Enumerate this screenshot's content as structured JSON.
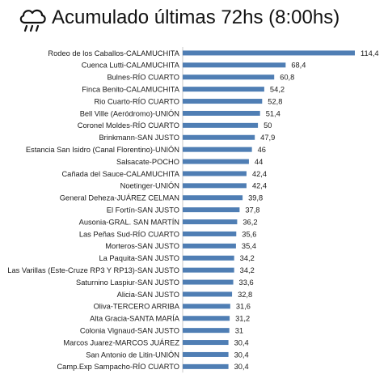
{
  "title": "Acumulado últimas 72hs (8:00hs)",
  "icons": {
    "header": "rain-cloud-icon"
  },
  "colors": {
    "bar": "#4f7eb4",
    "title": "#111111"
  },
  "chart_data": {
    "type": "bar",
    "orientation": "horizontal",
    "title": "Acumulado últimas 72hs (8:00hs)",
    "xlabel": "",
    "ylabel": "",
    "grid": false,
    "categories": [
      "Rodeo de los Caballos-CALAMUCHITA",
      "Cuenca Lutti-CALAMUCHITA",
      "Bulnes-RÍO CUARTO",
      "Finca Benito-CALAMUCHITA",
      "Rio Cuarto-RÍO CUARTO",
      "Bell Ville (Aeródromo)-UNIÓN",
      "Coronel Moldes-RÍO CUARTO",
      "Brinkmann-SAN JUSTO",
      "Estancia San Isidro (Canal Florentino)-UNIÓN",
      "Salsacate-POCHO",
      "Cañada del Sauce-CALAMUCHITA",
      "Noetinger-UNIÓN",
      "General Deheza-JUÁREZ CELMAN",
      "El Fortín-SAN JUSTO",
      "Ausonia-GRAL. SAN MARTÍN",
      "Las Peñas Sud-RÍO CUARTO",
      "Morteros-SAN JUSTO",
      "La Paquita-SAN JUSTO",
      "Las Varillas (Este-Cruze RP3 Y RP13)-SAN JUSTO",
      "Saturnino Laspiur-SAN JUSTO",
      "Alicia-SAN JUSTO",
      "Oliva-TERCERO ARRIBA",
      "Alta Gracia-SANTA MARÍA",
      "Colonia Vignaud-SAN JUSTO",
      "Marcos Juarez-MARCOS JUÁREZ",
      "San Antonio de Litin-UNIÓN",
      "Camp.Exp Sampacho-RÍO CUARTO"
    ],
    "values": [
      114.4,
      68.4,
      60.8,
      54.2,
      52.8,
      51.4,
      50,
      47.9,
      46,
      44,
      42.4,
      42.4,
      39.8,
      37.8,
      36.2,
      35.6,
      35.4,
      34.2,
      34.2,
      33.6,
      32.8,
      31.6,
      31.2,
      31,
      30.4,
      30.4,
      30.4
    ],
    "value_labels": [
      "114,4",
      "68,4",
      "60,8",
      "54,2",
      "52,8",
      "51,4",
      "50",
      "47,9",
      "46",
      "44",
      "42,4",
      "42,4",
      "39,8",
      "37,8",
      "36,2",
      "35,6",
      "35,4",
      "34,2",
      "34,2",
      "33,6",
      "32,8",
      "31,6",
      "31,2",
      "31",
      "30,4",
      "30,4",
      "30,4"
    ],
    "xlim": [
      0,
      114.4
    ]
  }
}
